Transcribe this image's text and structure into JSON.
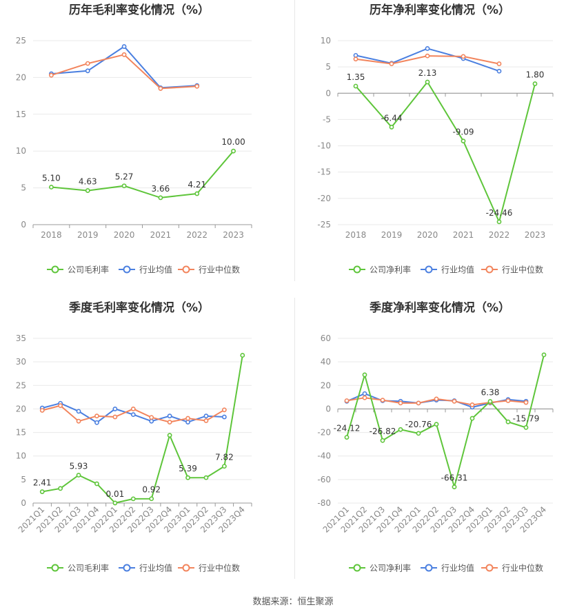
{
  "colors": {
    "company": "#5ec53a",
    "avg": "#4a7fe0",
    "median": "#f2845c",
    "grid": "#e9e9e9",
    "axis": "#999999",
    "text": "#333333"
  },
  "source_text": "数据来源：恒生聚源",
  "chart_data": [
    {
      "type": "line",
      "title": "历年毛利率变化情况（%）",
      "categories": [
        "2018",
        "2019",
        "2020",
        "2021",
        "2022",
        "2023"
      ],
      "ylim": [
        0,
        25
      ],
      "yticks": [
        0,
        5,
        10,
        15,
        20,
        25
      ],
      "grid": true,
      "legend_placement": "bottom",
      "series": [
        {
          "name": "公司毛利率",
          "color_key": "company",
          "labeled": true,
          "values": [
            5.1,
            4.63,
            5.27,
            3.66,
            4.21,
            10.0
          ],
          "labels": [
            "5.10",
            "4.63",
            "5.27",
            "3.66",
            "4.21",
            "10.00"
          ]
        },
        {
          "name": "行业均值",
          "color_key": "avg",
          "values": [
            20.5,
            20.9,
            24.2,
            18.6,
            18.9,
            null
          ]
        },
        {
          "name": "行业中位数",
          "color_key": "median",
          "values": [
            20.3,
            21.9,
            23.1,
            18.5,
            18.8,
            null
          ]
        }
      ]
    },
    {
      "type": "line",
      "title": "历年净利率变化情况（%）",
      "categories": [
        "2018",
        "2019",
        "2020",
        "2021",
        "2022",
        "2023"
      ],
      "ylim": [
        -25,
        10
      ],
      "yticks": [
        -25,
        -20,
        -15,
        -10,
        -5,
        0,
        5,
        10
      ],
      "grid": true,
      "legend_placement": "bottom",
      "series": [
        {
          "name": "公司净利率",
          "color_key": "company",
          "labeled": true,
          "values": [
            1.35,
            -6.44,
            2.13,
            -9.09,
            -24.46,
            1.8
          ],
          "labels": [
            "1.35",
            "-6.44",
            "2.13",
            "-9.09",
            "-24.46",
            "1.80"
          ]
        },
        {
          "name": "行业均值",
          "color_key": "avg",
          "values": [
            7.2,
            5.7,
            8.5,
            6.6,
            4.2,
            null
          ]
        },
        {
          "name": "行业中位数",
          "color_key": "median",
          "values": [
            6.5,
            5.6,
            7.1,
            7.0,
            5.6,
            null
          ]
        }
      ]
    },
    {
      "type": "line",
      "title": "季度毛利率变化情况（%）",
      "categories": [
        "2021Q1",
        "2021Q2",
        "2021Q3",
        "2021Q4",
        "2022Q1",
        "2022Q2",
        "2022Q3",
        "2022Q4",
        "2023Q1",
        "2023Q2",
        "2023Q3",
        "2023Q4"
      ],
      "ylim": [
        0,
        35
      ],
      "yticks": [
        0,
        5,
        10,
        15,
        20,
        25,
        30,
        35
      ],
      "grid": true,
      "legend_placement": "bottom",
      "series": [
        {
          "name": "公司毛利率",
          "color_key": "company",
          "labeled": true,
          "values": [
            2.41,
            3.1,
            5.93,
            4.1,
            0.01,
            0.9,
            0.92,
            14.4,
            5.39,
            5.4,
            7.82,
            31.4
          ],
          "labels": [
            "2.41",
            "",
            "5.93",
            "",
            "0.01",
            "",
            "0.92",
            "",
            "5.39",
            "",
            "7.82",
            ""
          ]
        },
        {
          "name": "行业均值",
          "color_key": "avg",
          "values": [
            20.2,
            21.2,
            19.5,
            17.1,
            20.0,
            18.8,
            17.4,
            18.5,
            17.2,
            18.5,
            18.3,
            null
          ]
        },
        {
          "name": "行业中位数",
          "color_key": "median",
          "values": [
            19.7,
            20.7,
            17.4,
            18.5,
            18.3,
            20.0,
            18.2,
            17.2,
            18.0,
            17.5,
            19.8,
            null
          ]
        }
      ]
    },
    {
      "type": "line",
      "title": "季度净利率变化情况（%）",
      "categories": [
        "2021Q1",
        "2021Q2",
        "2021Q3",
        "2021Q4",
        "2022Q1",
        "2022Q2",
        "2022Q3",
        "2022Q4",
        "2023Q1",
        "2023Q2",
        "2023Q3",
        "2023Q4"
      ],
      "ylim": [
        -80,
        60
      ],
      "yticks": [
        -80,
        -60,
        -40,
        -20,
        0,
        20,
        40,
        60
      ],
      "grid": true,
      "legend_placement": "bottom",
      "series": [
        {
          "name": "公司净利率",
          "color_key": "company",
          "labeled": true,
          "values": [
            -24.12,
            29.0,
            -26.82,
            -17.5,
            -20.76,
            -13.0,
            -66.31,
            -8.0,
            6.38,
            -11.0,
            -15.79,
            46.0
          ],
          "labels": [
            "-24.12",
            "",
            "-26.82",
            "",
            "-20.76",
            "",
            "-66.31",
            "",
            "6.38",
            "",
            "-15.79",
            ""
          ]
        },
        {
          "name": "行业均值",
          "color_key": "avg",
          "values": [
            6.5,
            13.0,
            7.0,
            6.5,
            5.0,
            7.5,
            7.0,
            1.5,
            5.0,
            8.0,
            6.5,
            null
          ]
        },
        {
          "name": "行业中位数",
          "color_key": "median",
          "values": [
            7.0,
            9.5,
            7.5,
            5.0,
            5.0,
            8.5,
            6.5,
            3.5,
            5.5,
            7.0,
            5.5,
            null
          ]
        }
      ]
    }
  ]
}
